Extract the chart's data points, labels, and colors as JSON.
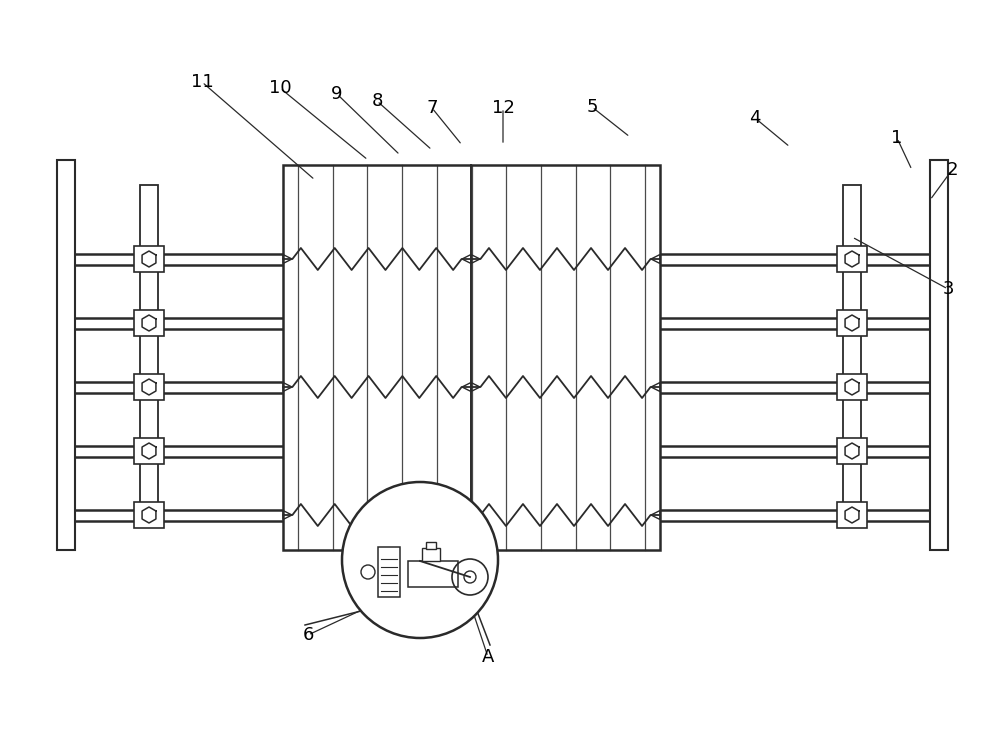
{
  "bg_color": "#ffffff",
  "line_color": "#2a2a2a",
  "fig_width": 10.0,
  "fig_height": 7.45,
  "dpi": 100
}
